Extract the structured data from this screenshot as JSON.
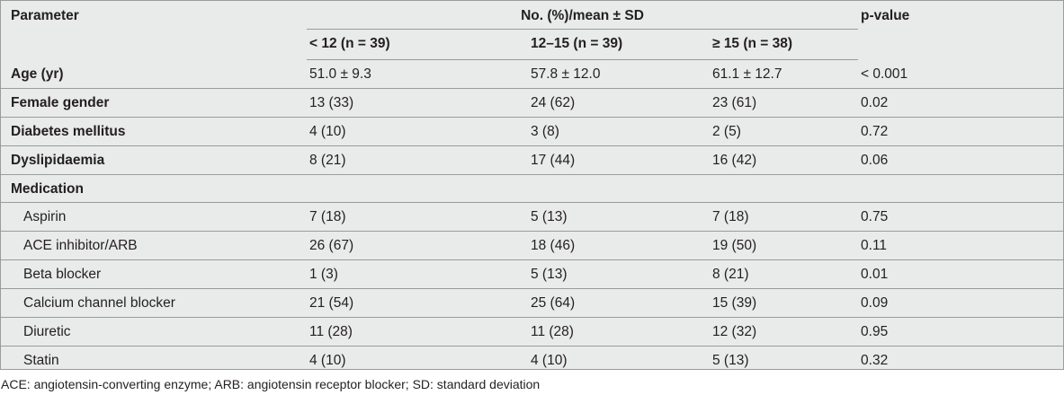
{
  "table": {
    "header": {
      "parameter": "Parameter",
      "span_label": "No. (%)/mean ± SD",
      "p_value": "p-value",
      "groups": [
        "< 12 (n = 39)",
        "12–15 (n = 39)",
        "≥ 15 (n = 38)"
      ]
    },
    "rows": [
      {
        "label": "Age (yr)",
        "cells": [
          "51.0 ± 9.3",
          "57.8 ± 12.0",
          "61.1 ± 12.7",
          "< 0.001"
        ]
      },
      {
        "label": "Female gender",
        "cells": [
          "13 (33)",
          "24 (62)",
          "23 (61)",
          "0.02"
        ]
      },
      {
        "label": "Diabetes mellitus",
        "cells": [
          "4 (10)",
          "3 (8)",
          "2 (5)",
          "0.72"
        ]
      },
      {
        "label": "Dyslipidaemia",
        "cells": [
          "8 (21)",
          "17 (44)",
          "16 (42)",
          "0.06"
        ]
      },
      {
        "label": "Medication",
        "cells": [
          "",
          "",
          "",
          ""
        ]
      },
      {
        "label": "Aspirin",
        "cells": [
          "7 (18)",
          "5 (13)",
          "7 (18)",
          "0.75"
        ]
      },
      {
        "label": "ACE inhibitor/ARB",
        "cells": [
          "26 (67)",
          "18 (46)",
          "19 (50)",
          "0.11"
        ]
      },
      {
        "label": "Beta blocker",
        "cells": [
          "1 (3)",
          "5 (13)",
          "8 (21)",
          "0.01"
        ]
      },
      {
        "label": "Calcium channel blocker",
        "cells": [
          "21 (54)",
          "25 (64)",
          "15 (39)",
          "0.09"
        ]
      },
      {
        "label": "Diuretic",
        "cells": [
          "11 (28)",
          "11 (28)",
          "12 (32)",
          "0.95"
        ]
      },
      {
        "label": "Statin",
        "cells": [
          "4 (10)",
          "4 (10)",
          "5 (13)",
          "0.32"
        ]
      }
    ]
  },
  "footnote": "ACE: angiotensin-converting enzyme; ARB: angiotensin receptor blocker; SD: standard deviation"
}
